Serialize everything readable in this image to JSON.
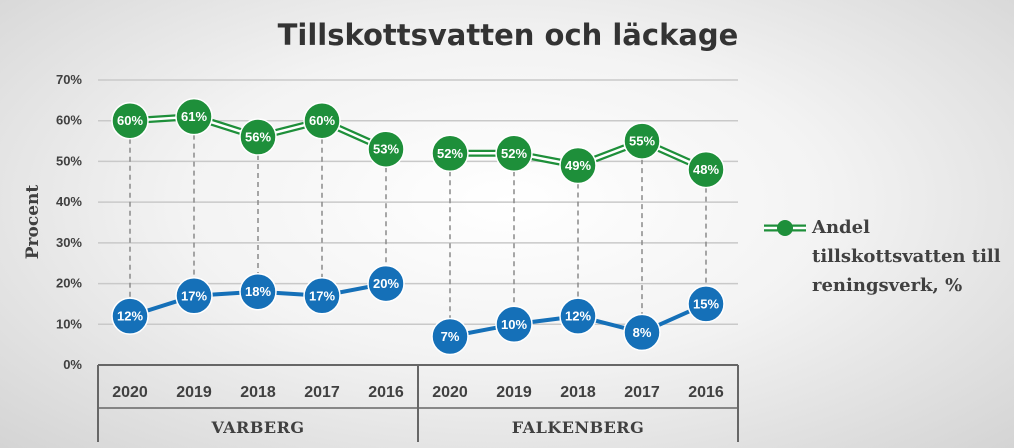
{
  "chart_data": {
    "type": "line",
    "title": "Tillskottsvatten och läckage",
    "ylabel": "Procent",
    "ylim": [
      0,
      70
    ],
    "yticks": [
      "0%",
      "10%",
      "20%",
      "30%",
      "40%",
      "50%",
      "60%",
      "70%"
    ],
    "grid": true,
    "legend_position": "right",
    "groups": [
      {
        "name": "VARBERG",
        "categories": [
          "2020",
          "2019",
          "2018",
          "2017",
          "2016"
        ]
      },
      {
        "name": "FALKENBERG",
        "categories": [
          "2020",
          "2019",
          "2018",
          "2017",
          "2016"
        ]
      }
    ],
    "series": [
      {
        "name": "Andel tillskottsvatten till reningsverk, %",
        "legend_lines": [
          "Andel",
          "tillskottsvatten till",
          "reningsverk, %"
        ],
        "color": "#1e8f3a",
        "values": [
          [
            60,
            61,
            56,
            60,
            53
          ],
          [
            52,
            52,
            49,
            55,
            48
          ]
        ],
        "labels": [
          [
            "60%",
            "61%",
            "56%",
            "60%",
            "53%"
          ],
          [
            "52%",
            "52%",
            "49%",
            "55%",
            "48%"
          ]
        ]
      },
      {
        "color": "#1570b8",
        "values": [
          [
            12,
            17,
            18,
            17,
            20
          ],
          [
            7,
            10,
            12,
            8,
            15
          ]
        ],
        "labels": [
          [
            "12%",
            "17%",
            "18%",
            "17%",
            "20%"
          ],
          [
            "7%",
            "10%",
            "12%",
            "8%",
            "15%"
          ]
        ]
      }
    ]
  }
}
